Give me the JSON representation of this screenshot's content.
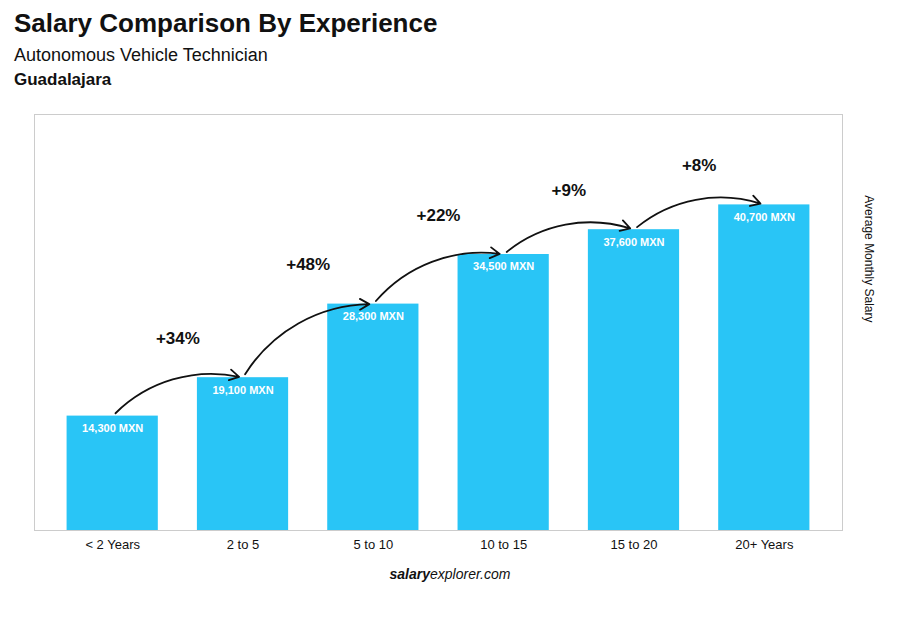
{
  "chart_data": {
    "type": "bar",
    "title": "Salary Comparison By Experience",
    "subtitle": [
      "Autonomous Vehicle Technician",
      "Guadalajara"
    ],
    "ylabel": "Average Monthly Salary",
    "categories": [
      "< 2 Years",
      "2 to 5",
      "5 to 10",
      "10 to 15",
      "15 to 20",
      "20+ Years"
    ],
    "values": [
      14300,
      19100,
      28300,
      34500,
      37600,
      40700
    ],
    "value_labels": [
      "14,300 MXN",
      "19,100 MXN",
      "28,300 MXN",
      "34,500 MXN",
      "37,600 MXN",
      "40,700 MXN"
    ],
    "data_labels": true,
    "annotations": [
      "+34%",
      "+48%",
      "+22%",
      "+9%",
      "+8%"
    ],
    "color": "#29c5f6",
    "ylim": [
      0,
      52000
    ],
    "tick_labels": "x",
    "grid": false,
    "caption": [
      "salary",
      "explorer.com"
    ]
  }
}
